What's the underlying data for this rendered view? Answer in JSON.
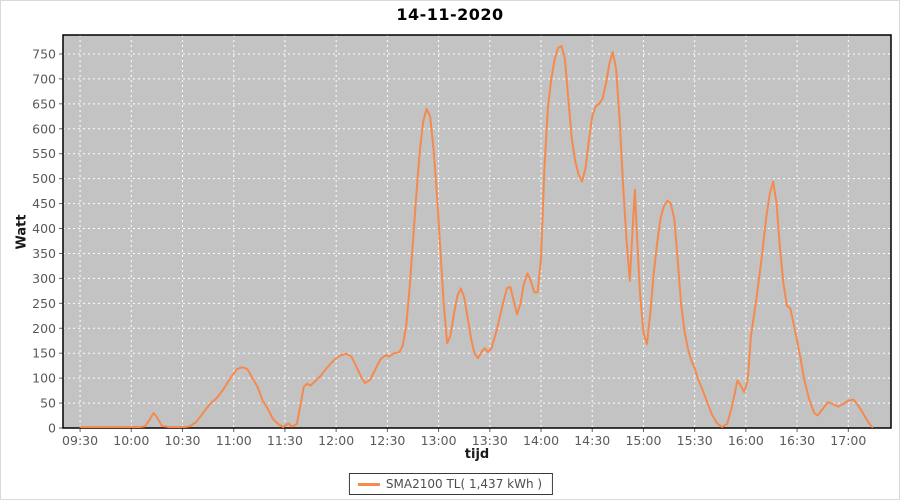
{
  "title": "14-11-2020",
  "axes": {
    "y_title": "Watt",
    "x_title": "tijd"
  },
  "legend": {
    "label": "SMA2100 TL( 1,437 kWh )"
  },
  "colors": {
    "plot_bg": "#c3c3c3",
    "grid": "#ffffff",
    "series": "#f58a4e",
    "plot_border": "#000000",
    "tick_mark": "#666666",
    "tick_label": "#5a5a5a",
    "title": "#000000",
    "legend_text": "#4e4e4e",
    "legend_border": "#3a3a3a"
  },
  "chart_data": {
    "type": "line",
    "title": "14-11-2020",
    "xlabel": "tijd",
    "ylabel": "Watt",
    "grid": true,
    "legend_position": "bottom",
    "y_ticks": [
      0,
      50,
      100,
      150,
      200,
      250,
      300,
      350,
      400,
      450,
      500,
      550,
      600,
      650,
      700,
      750
    ],
    "x_ticks": [
      "09:30",
      "10:00",
      "10:30",
      "11:00",
      "11:30",
      "12:00",
      "12:30",
      "13:00",
      "13:30",
      "14:00",
      "14:30",
      "15:00",
      "15:30",
      "16:00",
      "16:30",
      "17:00"
    ],
    "ylim": [
      0,
      788
    ],
    "xlim_minutes": [
      560,
      1045
    ],
    "series": [
      {
        "name": "SMA2100 TL( 1,437 kWh )",
        "color": "#f58a4e",
        "points": [
          [
            "09:30",
            2
          ],
          [
            "09:40",
            2
          ],
          [
            "09:50",
            2
          ],
          [
            "10:00",
            2
          ],
          [
            "10:05",
            2
          ],
          [
            "10:08",
            3
          ],
          [
            "10:11",
            18
          ],
          [
            "10:13",
            30
          ],
          [
            "10:15",
            22
          ],
          [
            "10:18",
            4
          ],
          [
            "10:22",
            2
          ],
          [
            "10:27",
            2
          ],
          [
            "10:31",
            2
          ],
          [
            "10:34",
            3
          ],
          [
            "10:38",
            12
          ],
          [
            "10:42",
            30
          ],
          [
            "10:46",
            48
          ],
          [
            "10:50",
            60
          ],
          [
            "10:54",
            78
          ],
          [
            "10:58",
            100
          ],
          [
            "11:02",
            118
          ],
          [
            "11:05",
            122
          ],
          [
            "11:08",
            118
          ],
          [
            "11:11",
            100
          ],
          [
            "11:14",
            82
          ],
          [
            "11:17",
            55
          ],
          [
            "11:20",
            38
          ],
          [
            "11:23",
            18
          ],
          [
            "11:26",
            8
          ],
          [
            "11:29",
            2
          ],
          [
            "11:32",
            9
          ],
          [
            "11:34",
            3
          ],
          [
            "11:37",
            8
          ],
          [
            "11:39",
            45
          ],
          [
            "11:41",
            82
          ],
          [
            "11:43",
            89
          ],
          [
            "11:45",
            85
          ],
          [
            "11:48",
            95
          ],
          [
            "11:51",
            105
          ],
          [
            "11:54",
            118
          ],
          [
            "11:57",
            130
          ],
          [
            "12:00",
            140
          ],
          [
            "12:03",
            146
          ],
          [
            "12:06",
            149
          ],
          [
            "12:09",
            143
          ],
          [
            "12:12",
            122
          ],
          [
            "12:15",
            100
          ],
          [
            "12:17",
            90
          ],
          [
            "12:20",
            97
          ],
          [
            "12:23",
            118
          ],
          [
            "12:26",
            138
          ],
          [
            "12:29",
            146
          ],
          [
            "12:31",
            143
          ],
          [
            "12:34",
            150
          ],
          [
            "12:37",
            152
          ],
          [
            "12:39",
            165
          ],
          [
            "12:41",
            205
          ],
          [
            "12:43",
            280
          ],
          [
            "12:45",
            375
          ],
          [
            "12:47",
            470
          ],
          [
            "12:49",
            555
          ],
          [
            "12:51",
            615
          ],
          [
            "12:53",
            640
          ],
          [
            "12:55",
            625
          ],
          [
            "12:57",
            560
          ],
          [
            "12:59",
            470
          ],
          [
            "13:01",
            360
          ],
          [
            "13:03",
            250
          ],
          [
            "13:05",
            170
          ],
          [
            "13:07",
            185
          ],
          [
            "13:09",
            230
          ],
          [
            "13:11",
            265
          ],
          [
            "13:13",
            280
          ],
          [
            "13:15",
            262
          ],
          [
            "13:17",
            222
          ],
          [
            "13:19",
            180
          ],
          [
            "13:21",
            150
          ],
          [
            "13:23",
            140
          ],
          [
            "13:25",
            152
          ],
          [
            "13:27",
            160
          ],
          [
            "13:29",
            152
          ],
          [
            "13:31",
            160
          ],
          [
            "13:34",
            195
          ],
          [
            "13:37",
            240
          ],
          [
            "13:40",
            280
          ],
          [
            "13:42",
            283
          ],
          [
            "13:44",
            255
          ],
          [
            "13:46",
            228
          ],
          [
            "13:48",
            250
          ],
          [
            "13:50",
            290
          ],
          [
            "13:52",
            310
          ],
          [
            "13:54",
            295
          ],
          [
            "13:56",
            272
          ],
          [
            "13:58",
            272
          ],
          [
            "14:00",
            340
          ],
          [
            "14:02",
            520
          ],
          [
            "14:04",
            640
          ],
          [
            "14:06",
            700
          ],
          [
            "14:08",
            740
          ],
          [
            "14:10",
            762
          ],
          [
            "14:12",
            766
          ],
          [
            "14:14",
            740
          ],
          [
            "14:16",
            660
          ],
          [
            "14:18",
            580
          ],
          [
            "14:20",
            535
          ],
          [
            "14:22",
            508
          ],
          [
            "14:24",
            494
          ],
          [
            "14:26",
            520
          ],
          [
            "14:28",
            575
          ],
          [
            "14:30",
            625
          ],
          [
            "14:32",
            645
          ],
          [
            "14:34",
            650
          ],
          [
            "14:36",
            660
          ],
          [
            "14:38",
            690
          ],
          [
            "14:40",
            730
          ],
          [
            "14:42",
            754
          ],
          [
            "14:44",
            720
          ],
          [
            "14:46",
            620
          ],
          [
            "14:48",
            490
          ],
          [
            "14:50",
            380
          ],
          [
            "14:52",
            295
          ],
          [
            "14:54",
            420
          ],
          [
            "14:55",
            478
          ],
          [
            "14:56",
            400
          ],
          [
            "14:58",
            270
          ],
          [
            "15:00",
            190
          ],
          [
            "15:02",
            168
          ],
          [
            "15:04",
            230
          ],
          [
            "15:06",
            310
          ],
          [
            "15:08",
            370
          ],
          [
            "15:10",
            420
          ],
          [
            "15:12",
            445
          ],
          [
            "15:14",
            456
          ],
          [
            "15:16",
            450
          ],
          [
            "15:18",
            420
          ],
          [
            "15:20",
            340
          ],
          [
            "15:22",
            250
          ],
          [
            "15:24",
            195
          ],
          [
            "15:26",
            160
          ],
          [
            "15:28",
            135
          ],
          [
            "15:30",
            120
          ],
          [
            "15:32",
            98
          ],
          [
            "15:34",
            82
          ],
          [
            "15:37",
            55
          ],
          [
            "15:40",
            28
          ],
          [
            "15:43",
            10
          ],
          [
            "15:46",
            2
          ],
          [
            "15:49",
            8
          ],
          [
            "15:52",
            45
          ],
          [
            "15:55",
            95
          ],
          [
            "15:57",
            85
          ],
          [
            "15:59",
            72
          ],
          [
            "16:01",
            95
          ],
          [
            "16:03",
            185
          ],
          [
            "16:06",
            255
          ],
          [
            "16:09",
            335
          ],
          [
            "16:12",
            425
          ],
          [
            "16:14",
            470
          ],
          [
            "16:16",
            494
          ],
          [
            "16:18",
            450
          ],
          [
            "16:20",
            360
          ],
          [
            "16:22",
            290
          ],
          [
            "16:24",
            245
          ],
          [
            "16:26",
            240
          ],
          [
            "16:28",
            208
          ],
          [
            "16:30",
            175
          ],
          [
            "16:32",
            140
          ],
          [
            "16:34",
            100
          ],
          [
            "16:37",
            58
          ],
          [
            "16:40",
            30
          ],
          [
            "16:42",
            25
          ],
          [
            "16:45",
            38
          ],
          [
            "16:48",
            52
          ],
          [
            "16:51",
            48
          ],
          [
            "16:54",
            43
          ],
          [
            "16:57",
            48
          ],
          [
            "17:00",
            55
          ],
          [
            "17:03",
            57
          ],
          [
            "17:06",
            44
          ],
          [
            "17:09",
            27
          ],
          [
            "17:12",
            10
          ],
          [
            "17:14",
            2
          ]
        ]
      }
    ]
  }
}
